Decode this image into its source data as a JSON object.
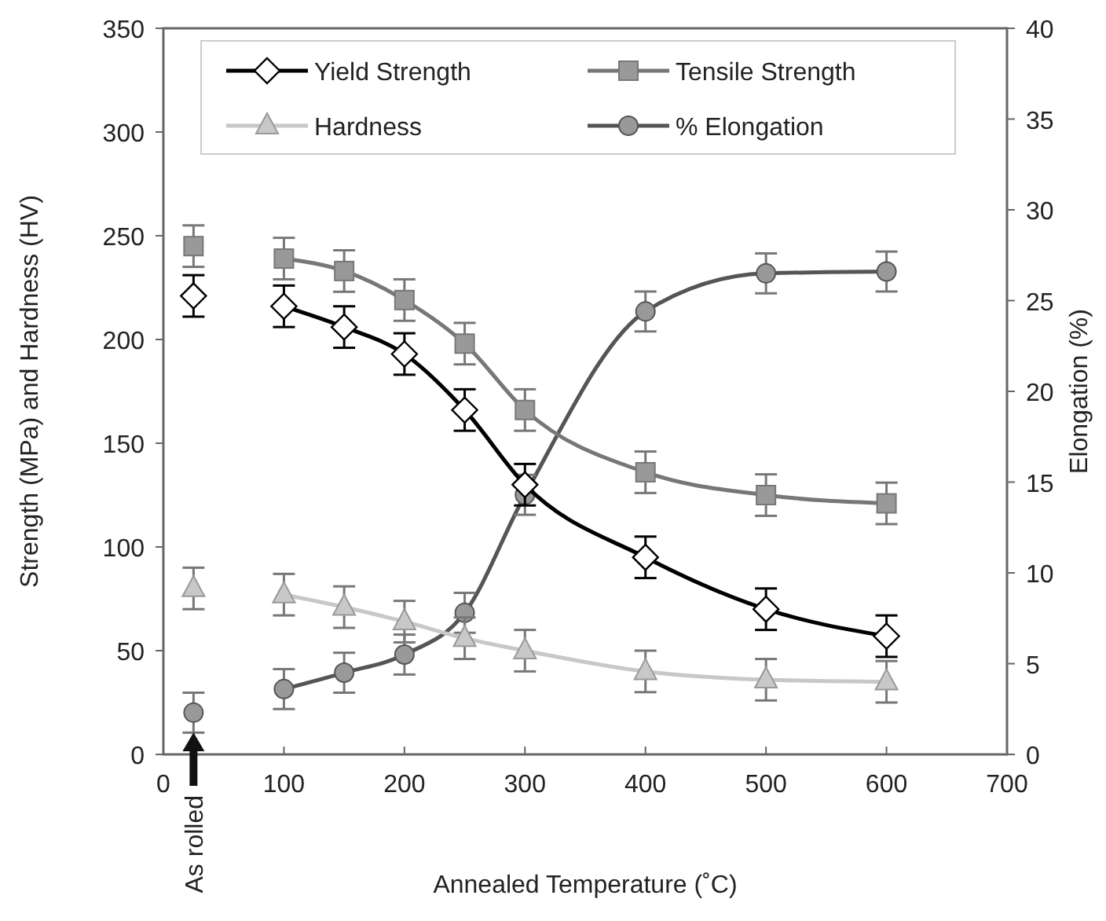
{
  "chart_data": {
    "type": "line",
    "xlabel": "Annealed Temperature (˚C)",
    "ylabel": "Strength (MPa) and Hardness (HV)",
    "y2label": "Elongation (%)",
    "xlim": [
      0,
      700
    ],
    "xticks": [
      0,
      100,
      200,
      300,
      400,
      500,
      600,
      700
    ],
    "ylim": [
      0,
      350
    ],
    "yticks": [
      0,
      50,
      100,
      150,
      200,
      250,
      300,
      350
    ],
    "y2lim": [
      0,
      40
    ],
    "y2ticks": [
      0,
      5,
      10,
      15,
      20,
      25,
      30,
      35,
      40
    ],
    "grid": false,
    "legend": "top",
    "annotations": [
      "As rolled"
    ],
    "series": [
      {
        "name": "Yield Strength",
        "color": "#000000",
        "marker": "diamond",
        "x": [
          100,
          150,
          200,
          250,
          300,
          400,
          500,
          600
        ],
        "values": [
          216,
          206,
          193,
          166,
          130,
          95,
          70,
          57
        ],
        "errors": [
          10,
          10,
          10,
          10,
          10,
          10,
          10,
          10
        ]
      },
      {
        "name": "Tensile Strength",
        "color": "#777777",
        "marker": "square",
        "x": [
          100,
          150,
          200,
          250,
          300,
          400,
          500,
          600
        ],
        "values": [
          239,
          233,
          219,
          198,
          166,
          136,
          125,
          121
        ],
        "errors": [
          10,
          10,
          10,
          10,
          10,
          10,
          10,
          10
        ]
      },
      {
        "name": "Hardness",
        "color": "#c8c8c8",
        "marker": "triangle",
        "x": [
          100,
          150,
          200,
          250,
          300,
          400,
          500,
          600
        ],
        "values": [
          77,
          71,
          64,
          56,
          50,
          40,
          36,
          35
        ],
        "errors": [
          10,
          10,
          10,
          10,
          10,
          10,
          10,
          10
        ]
      },
      {
        "name": "% Elongation",
        "color": "#555555",
        "marker": "circle",
        "axis": "y2",
        "x": [
          100,
          150,
          200,
          250,
          300,
          400,
          500,
          600
        ],
        "values": [
          3.6,
          4.5,
          5.5,
          7.8,
          14.3,
          24.4,
          26.5,
          26.6
        ],
        "errors": [
          1.1,
          1.1,
          1.1,
          1.1,
          1.1,
          1.1,
          1.1,
          1.1
        ]
      },
      {
        "type": "scatter",
        "color": "#000000",
        "marker": "diamond",
        "x": [
          25
        ],
        "values": [
          221
        ],
        "errors": [
          10
        ]
      },
      {
        "type": "scatter",
        "color": "#777777",
        "marker": "square",
        "x": [
          25
        ],
        "values": [
          245
        ],
        "errors": [
          10
        ]
      },
      {
        "type": "scatter",
        "color": "#c8c8c8",
        "marker": "triangle",
        "x": [
          25
        ],
        "values": [
          80
        ],
        "errors": [
          10
        ]
      },
      {
        "type": "scatter",
        "color": "#555555",
        "marker": "circle",
        "axis": "y2",
        "x": [
          25
        ],
        "values": [
          2.3
        ],
        "errors": [
          1.1
        ]
      }
    ]
  }
}
